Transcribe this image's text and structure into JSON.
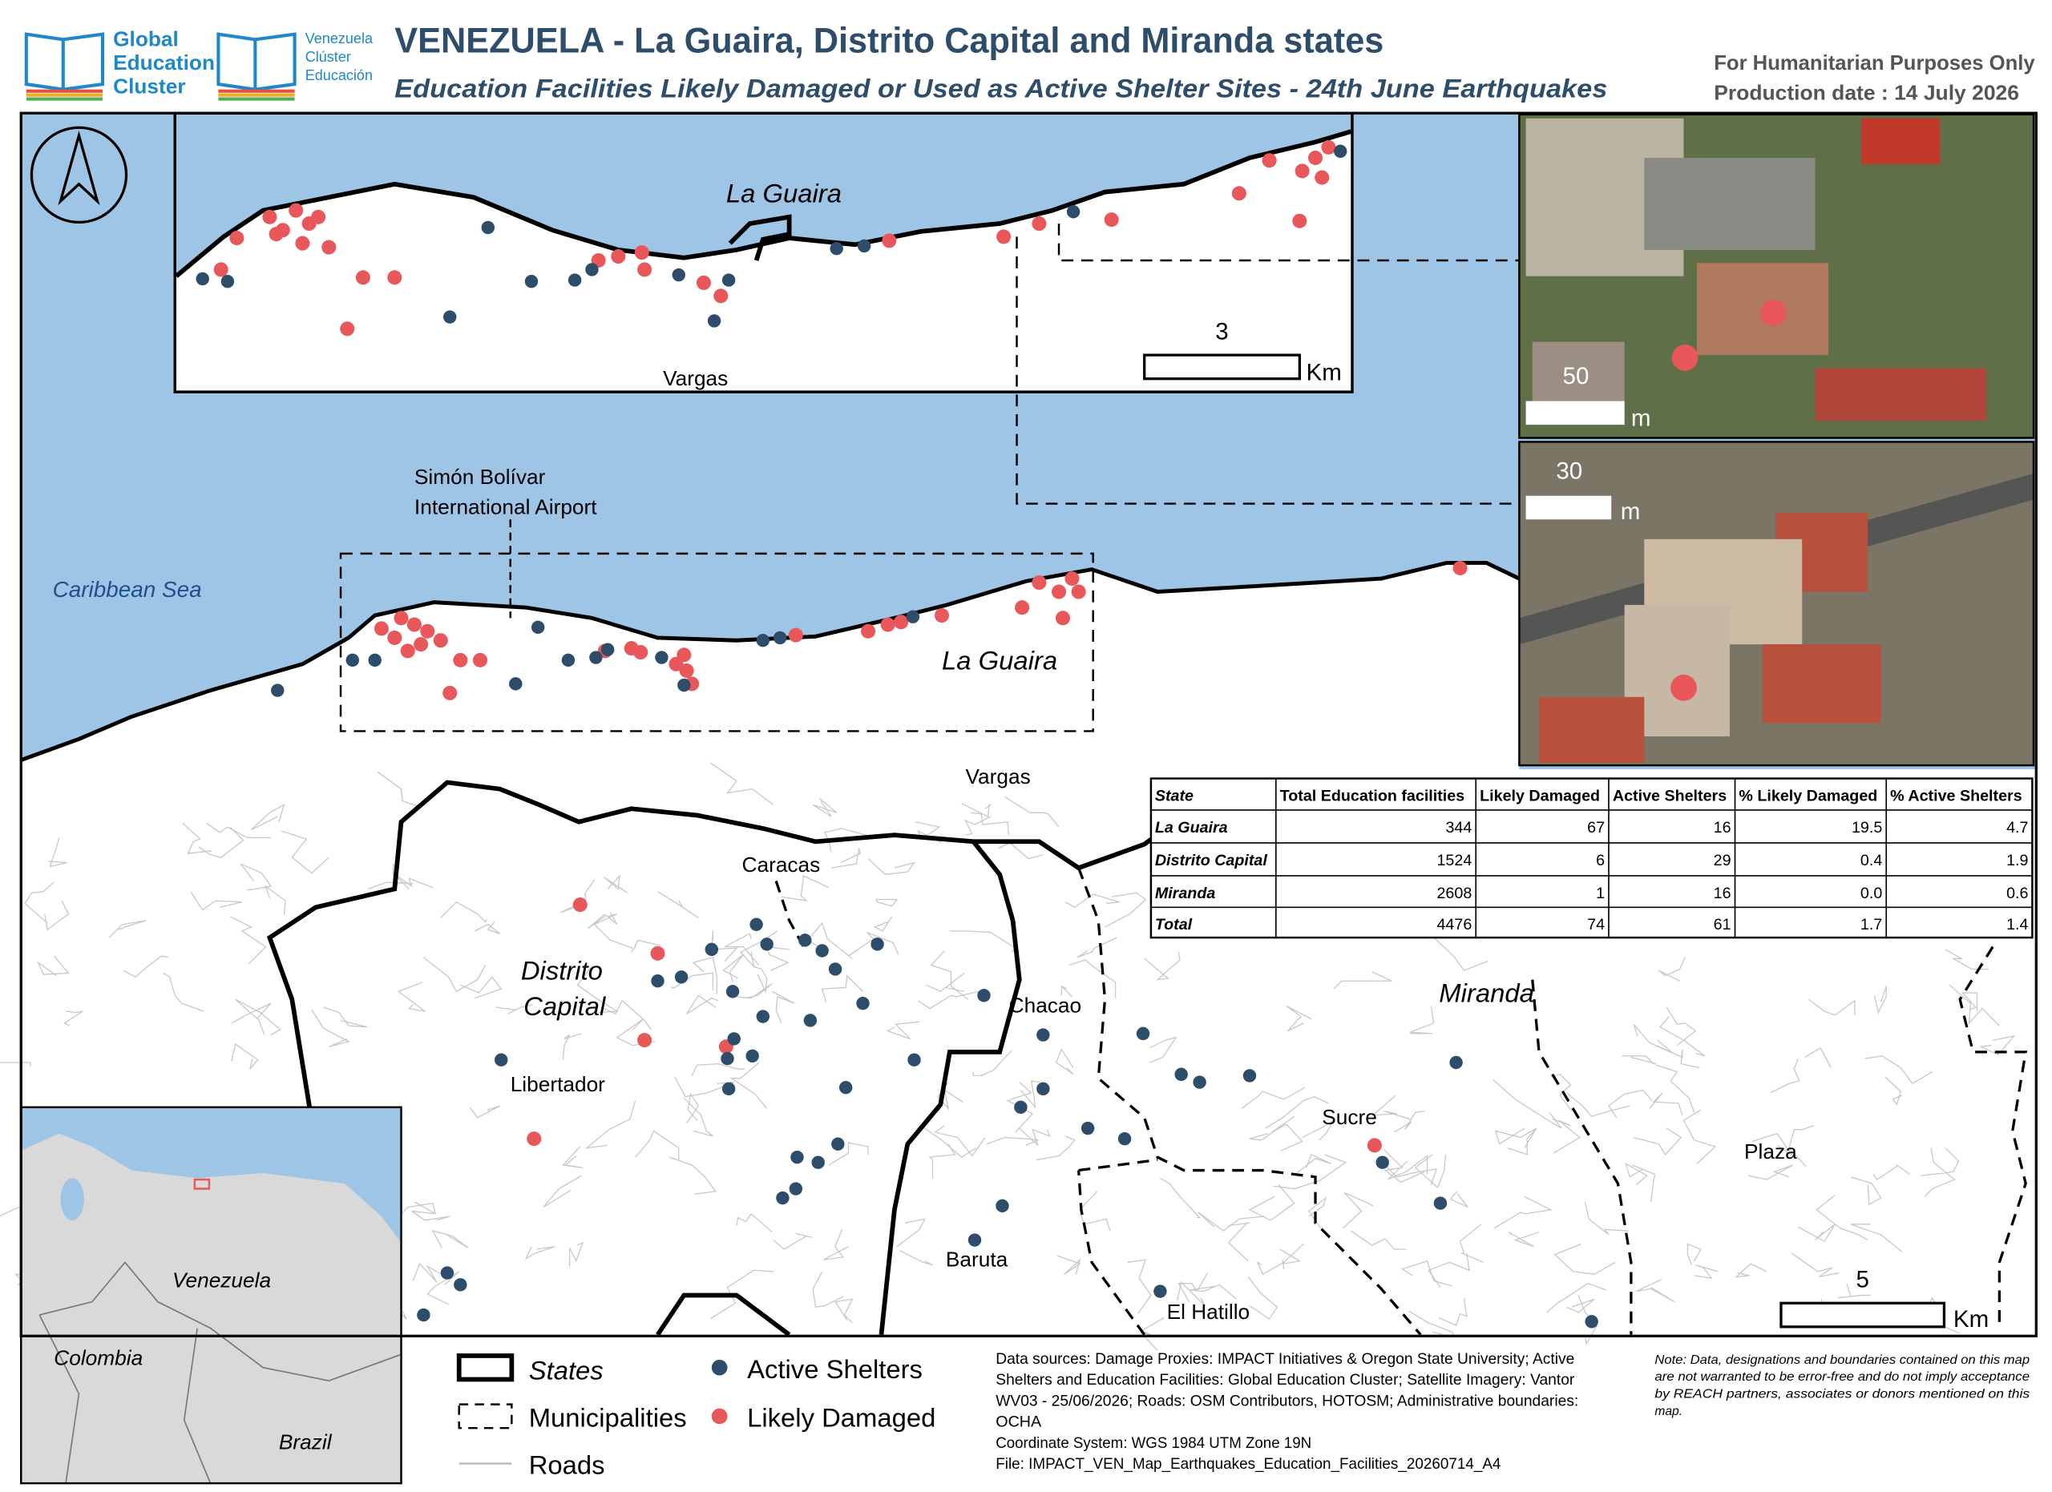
{
  "header": {
    "logo1": [
      "Global",
      "Education",
      "Cluster"
    ],
    "logo2": [
      "Venezuela",
      "Clúster",
      "Educación"
    ],
    "title": "VENEZUELA - La Guaira, Distrito Capital and Miranda states",
    "subtitle": "Education Facilities Likely Damaged or Used as Active Shelter Sites - 24th June Earthquakes",
    "purpose": "For Humanitarian Purposes Only",
    "production_date": "Production date : 14 July 2026"
  },
  "map": {
    "la_guaira_inset": "La Guaira",
    "vargas_inset": "Vargas",
    "airport": [
      "Simón Bolívar",
      "International Airport"
    ],
    "caribbean_sea": "Caribbean Sea",
    "la_guaira": "La Guaira",
    "vargas": "Vargas",
    "caracas": "Caracas",
    "distrito_capital": [
      "Distrito",
      "Capital"
    ],
    "libertador": "Libertador",
    "chacao": "Chacao",
    "miranda": "Miranda",
    "sucre": "Sucre",
    "plaza": "Plaza",
    "baruta": "Baruta",
    "el_hatillo": "El Hatillo",
    "venezuela": "Venezuela",
    "colombia": "Colombia",
    "brazil": "Brazil"
  },
  "scale_bars": {
    "inset": [
      "3",
      "Km"
    ],
    "photo1": [
      "50",
      "m"
    ],
    "photo2": [
      "30",
      "m"
    ],
    "main": [
      "5",
      "Km"
    ]
  },
  "table": {
    "header": [
      "State",
      "Total Education facilities",
      "Likely Damaged",
      "Active Shelters",
      "% Likely Damaged",
      "% Active Shelters"
    ],
    "rows": [
      [
        "La Guaira",
        "344",
        "67",
        "16",
        "19.5",
        "4.7"
      ],
      [
        "Distrito Capital",
        "1524",
        "6",
        "29",
        "0.4",
        "1.9"
      ],
      [
        "Miranda",
        "2608",
        "1",
        "16",
        "0.0",
        "0.6"
      ],
      [
        "Total",
        "4476",
        "74",
        "61",
        "1.7",
        "1.4"
      ]
    ]
  },
  "legend": {
    "states": "States",
    "municipalities": "Municipalities",
    "roads": "Roads",
    "active": "Active Shelters",
    "damaged": "Likely Damaged"
  },
  "sources": [
    "Data sources: Damage Proxies: IMPACT Initiatives & Oregon State University; Active",
    "Shelters and Education Facilities: Global Education Cluster; Satellite Imagery: Vantor",
    "WV03 - 25/06/2026; Roads: OSM Contributors, HOTOSM; Administrative boundaries:",
    "OCHA",
    "Coordinate System: WGS 1984 UTM Zone 19N",
    "File: IMPACT_VEN_Map_Earthquakes_Education_Facilities_20260714_A4"
  ],
  "note": [
    "Note: Data, designations and boundaries contained on this map",
    "are not warranted to be error-free and do not imply acceptance",
    "by REACH partners, associates or donors mentioned on this",
    "map."
  ]
}
